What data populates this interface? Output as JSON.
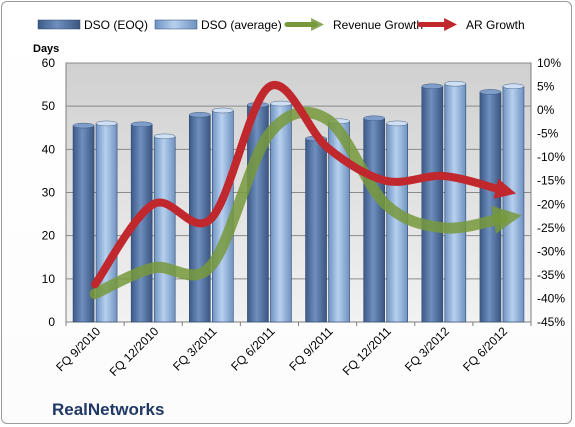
{
  "company_label": "RealNetworks",
  "chart_data": {
    "type": "bar",
    "categories": [
      "FQ 9/2010",
      "FQ 12/2010",
      "FQ 3/2011",
      "FQ 6/2011",
      "FQ 9/2011",
      "FQ 12/2011",
      "FQ 3/2012",
      "FQ 6/2012"
    ],
    "ylabel": "Days",
    "ylim": [
      0,
      60
    ],
    "yticks": [
      0,
      10,
      20,
      30,
      40,
      50,
      60
    ],
    "y2lim": [
      -45,
      10
    ],
    "y2ticks": [
      "10%",
      "5%",
      "0%",
      "-5%",
      "-10%",
      "-15%",
      "-20%",
      "-25%",
      "-30%",
      "-35%",
      "-40%",
      "-45%"
    ],
    "legend_position": "top",
    "grid": true,
    "series": [
      {
        "name": "DSO (EOQ)",
        "kind": "bar",
        "axis": "left",
        "color": "#4f6f9f",
        "values": [
          45.5,
          45.8,
          48,
          50.3,
          42.5,
          47.2,
          54.6,
          53.3
        ]
      },
      {
        "name": "DSO (average)",
        "kind": "bar",
        "axis": "left",
        "color": "#8fb3dc",
        "values": [
          46,
          43,
          49,
          50.6,
          46.5,
          46,
          55.2,
          54.6
        ]
      },
      {
        "name": "Revenue Growth",
        "kind": "line",
        "axis": "right",
        "color": "#77993b",
        "values": [
          -39,
          -33.5,
          -33,
          -5,
          -2,
          -20,
          -25,
          -23
        ]
      },
      {
        "name": "AR Growth",
        "kind": "line",
        "axis": "right",
        "color": "#c0282d",
        "values": [
          -37,
          -20,
          -23,
          5,
          -8,
          -15,
          -14,
          -17
        ]
      }
    ]
  }
}
